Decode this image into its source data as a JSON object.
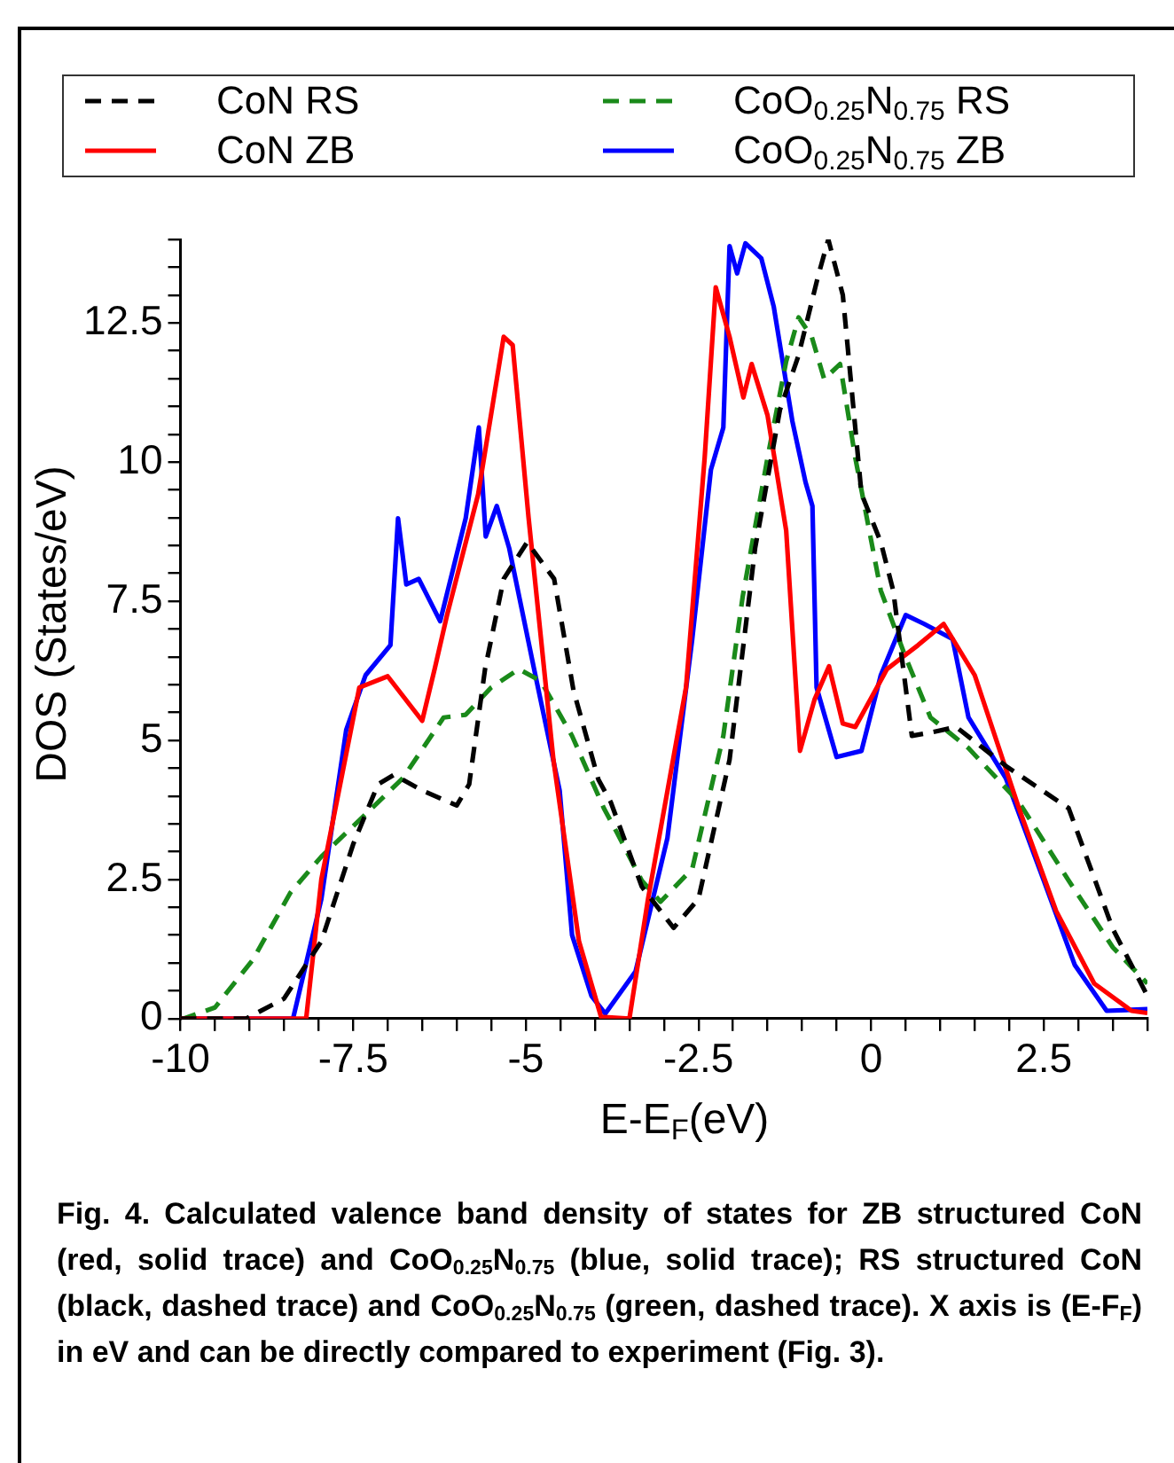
{
  "chart_data": {
    "type": "line",
    "xlabel": "E-E$_{F}$(eV)",
    "ylabel": "DOS (States/eV)",
    "xlim": [
      -10,
      4
    ],
    "ylim": [
      0,
      14
    ],
    "xticks": [
      -10,
      {
        "value": -9.5,
        "label": null
      },
      {
        "value": -9,
        "label": null
      },
      {
        "value": -8.5,
        "label": null
      },
      {
        "value": -8,
        "label": null
      },
      -7.5,
      {
        "value": -7,
        "label": null
      },
      {
        "value": -6.5,
        "label": null
      },
      {
        "value": -6,
        "label": null
      },
      {
        "value": -5.5,
        "label": null
      },
      -5,
      {
        "value": -4.5,
        "label": null
      },
      {
        "value": -4,
        "label": null
      },
      {
        "value": -3.5,
        "label": null
      },
      {
        "value": -3,
        "label": null
      },
      -2.5,
      {
        "value": -2,
        "label": null
      },
      {
        "value": -1.5,
        "label": null
      },
      {
        "value": -1,
        "label": null
      },
      {
        "value": -0.5,
        "label": null
      },
      0,
      {
        "value": 0.5,
        "label": null
      },
      {
        "value": 1,
        "label": null
      },
      {
        "value": 1.5,
        "label": null
      },
      {
        "value": 2,
        "label": null
      },
      2.5,
      {
        "value": 3,
        "label": null
      },
      {
        "value": 3.5,
        "label": null
      },
      {
        "value": 4,
        "label": null
      }
    ],
    "yticks": [
      0,
      {
        "value": 0.5,
        "label": null
      },
      {
        "value": 1,
        "label": null
      },
      {
        "value": 1.5,
        "label": null
      },
      {
        "value": 2,
        "label": null
      },
      2.5,
      {
        "value": 3,
        "label": null
      },
      {
        "value": 3.5,
        "label": null
      },
      {
        "value": 4,
        "label": null
      },
      {
        "value": 4.5,
        "label": null
      },
      5,
      {
        "value": 5.5,
        "label": null
      },
      {
        "value": 6,
        "label": null
      },
      {
        "value": 6.5,
        "label": null
      },
      {
        "value": 7,
        "label": null
      },
      7.5,
      {
        "value": 8,
        "label": null
      },
      {
        "value": 8.5,
        "label": null
      },
      {
        "value": 9,
        "label": null
      },
      {
        "value": 9.5,
        "label": null
      },
      10,
      {
        "value": 10.5,
        "label": null
      },
      {
        "value": 11,
        "label": null
      },
      {
        "value": 11.5,
        "label": null
      },
      {
        "value": 12,
        "label": null
      },
      12.5,
      {
        "value": 13,
        "label": null
      },
      {
        "value": 13.5,
        "label": null
      },
      {
        "value": 14,
        "label": null
      }
    ],
    "grid": false,
    "legend": "top",
    "marker": "none",
    "series": [
      {
        "name": "CoN RS",
        "color": "#000000",
        "line_style": "dashed",
        "x": [
          -10,
          -9.05,
          -8.5,
          -7.96,
          -7.5,
          -7.14,
          -6.91,
          -6.5,
          -6.0,
          -5.82,
          -5.59,
          -5.32,
          -4.98,
          -4.59,
          -4.31,
          -3.95,
          -3.77,
          -3.32,
          -2.86,
          -2.5,
          -2.05,
          -1.68,
          -1.32,
          -1.05,
          -0.77,
          -0.62,
          -0.41,
          -0.14,
          0.14,
          0.32,
          0.59,
          0.86,
          1.23,
          1.95,
          2.86,
          3.5,
          4.0
        ],
        "values": [
          0,
          0,
          0.36,
          1.39,
          3.13,
          4.21,
          4.38,
          4.1,
          3.83,
          4.21,
          6.28,
          7.9,
          8.56,
          7.9,
          5.9,
          4.3,
          3.89,
          2.37,
          1.63,
          2.15,
          4.65,
          8.45,
          10.94,
          11.92,
          13.33,
          14.0,
          13.0,
          9.43,
          8.56,
          7.69,
          5.08,
          5.14,
          5.24,
          4.54,
          3.78,
          1.61,
          0.41
        ]
      },
      {
        "name": "CoN ZB",
        "color": "#ff0000",
        "line_style": "solid",
        "x": [
          -10,
          -8.18,
          -7.96,
          -7.41,
          -7.0,
          -6.5,
          -6.32,
          -6.14,
          -5.69,
          -5.32,
          -5.19,
          -4.96,
          -4.6,
          -4.23,
          -3.91,
          -3.5,
          -3.23,
          -2.68,
          -2.41,
          -2.25,
          -2.05,
          -1.85,
          -1.73,
          -1.5,
          -1.23,
          -1.03,
          -0.82,
          -0.61,
          -0.41,
          -0.23,
          0.23,
          0.68,
          1.05,
          1.5,
          2.14,
          2.68,
          3.23,
          3.77,
          4.0
        ],
        "values": [
          0,
          0,
          2.5,
          5.95,
          6.15,
          5.35,
          6.28,
          7.25,
          9.42,
          12.25,
          12.1,
          9.0,
          4.65,
          1.39,
          0.03,
          0,
          2.15,
          5.95,
          10.08,
          13.14,
          12.25,
          11.16,
          11.76,
          10.84,
          8.77,
          4.81,
          5.73,
          6.33,
          5.3,
          5.24,
          6.28,
          6.71,
          7.09,
          6.17,
          3.78,
          1.93,
          0.63,
          0.14,
          0.1
        ]
      },
      {
        "name": "CoO$_{0.25}$N$_{0.75}$ RS",
        "color": "#1a8a1a",
        "line_style": "dashed",
        "x": [
          -10,
          -9.95,
          -9.5,
          -8.95,
          -8.41,
          -7.96,
          -7.32,
          -6.78,
          -6.19,
          -5.87,
          -5.5,
          -5.1,
          -4.78,
          -4.33,
          -3.87,
          -3.68,
          -3.32,
          -3.05,
          -2.59,
          -2.14,
          -1.86,
          -1.5,
          -1.23,
          -1.05,
          -0.86,
          -0.68,
          -0.45,
          -0.23,
          0.14,
          0.5,
          0.86,
          1.41,
          2.14,
          2.86,
          3.5,
          4.0
        ],
        "values": [
          0,
          0,
          0.2,
          1.06,
          2.26,
          2.91,
          3.67,
          4.32,
          5.41,
          5.46,
          5.95,
          6.28,
          6.06,
          5.08,
          3.78,
          3.34,
          2.48,
          2.1,
          2.69,
          5.08,
          7.58,
          10.08,
          11.81,
          12.6,
          12.25,
          11.49,
          11.76,
          10.08,
          7.69,
          6.49,
          5.41,
          4.86,
          3.89,
          2.48,
          1.28,
          0.63
        ]
      },
      {
        "name": "CoO$_{0.25}$N$_{0.75}$ ZB",
        "color": "#0000ff",
        "line_style": "solid",
        "x": [
          -10,
          -8.37,
          -7.96,
          -7.6,
          -7.32,
          -6.96,
          -6.85,
          -6.73,
          -6.55,
          -6.24,
          -5.87,
          -5.68,
          -5.58,
          -5.42,
          -5.24,
          -4.88,
          -4.51,
          -4.33,
          -4.05,
          -3.85,
          -3.41,
          -2.95,
          -2.59,
          -2.32,
          -2.14,
          -2.05,
          -1.94,
          -1.82,
          -1.59,
          -1.41,
          -1.14,
          -0.95,
          -0.85,
          -0.79,
          -0.5,
          -0.14,
          0.14,
          0.5,
          0.77,
          1.18,
          1.41,
          1.95,
          2.5,
          2.95,
          3.41,
          4.0
        ],
        "values": [
          0,
          0,
          2.15,
          5.19,
          6.17,
          6.71,
          8.99,
          7.8,
          7.9,
          7.14,
          8.99,
          10.62,
          8.66,
          9.21,
          8.45,
          6.28,
          4.1,
          1.5,
          0.41,
          0.09,
          0.85,
          3.24,
          6.82,
          9.86,
          10.62,
          13.88,
          13.39,
          13.93,
          13.66,
          12.79,
          10.73,
          9.64,
          9.21,
          5.95,
          4.7,
          4.81,
          6.17,
          7.25,
          7.09,
          6.82,
          5.41,
          4.32,
          2.48,
          0.96,
          0.14,
          0.17
        ]
      }
    ],
    "annotations": [
      "Fig. 4. Calculated valence band density of states for ZB structured CoN (red, solid trace) and CoO$_{0.25}$N$_{0.75}$ (blue, solid trace); RS structured CoN (black, dashed trace) and CoO$_{0.25}$N$_{0.75}$ (green, dashed trace).  X axis is (E-F$_{F}$) in eV and can be directly compared to experiment (Fig. 3)."
    ]
  }
}
